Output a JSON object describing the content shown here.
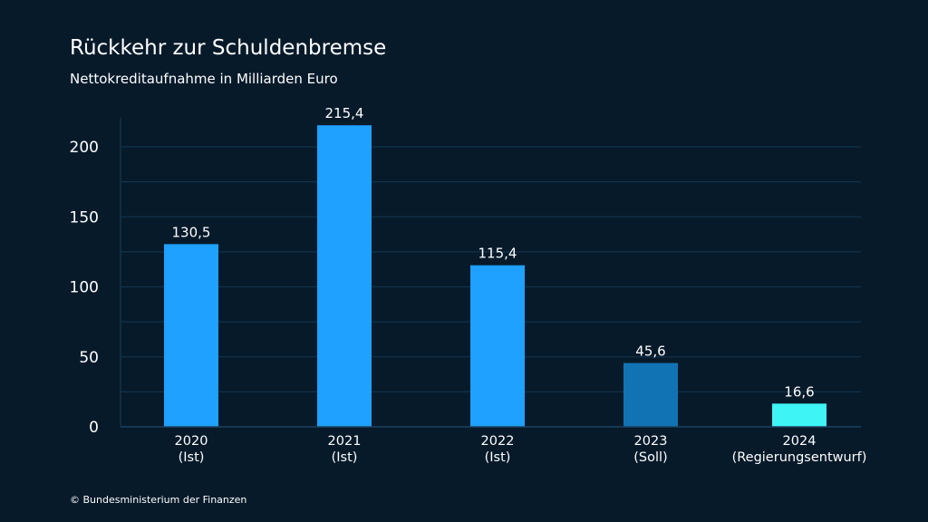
{
  "chart_data": {
    "type": "bar",
    "title": "Rückkehr zur Schuldenbremse",
    "subtitle": "Nettokreditaufnahme in Milliarden Euro",
    "categories": [
      [
        "2020",
        "(Ist)"
      ],
      [
        "2021",
        "(Ist)"
      ],
      [
        "2022",
        "(Ist)"
      ],
      [
        "2023",
        "(Soll)"
      ],
      [
        "2024",
        "(Regierungsentwurf)"
      ]
    ],
    "values": [
      130.5,
      215.4,
      115.4,
      45.6,
      16.6
    ],
    "value_labels": [
      "130,5",
      "215,4",
      "115,4",
      "45,6",
      "16,6"
    ],
    "bar_colors": [
      "#1ea1ff",
      "#1ea1ff",
      "#1ea1ff",
      "#1273b4",
      "#3ff4f4"
    ],
    "ylim": [
      0,
      220
    ],
    "yticks": [
      0,
      50,
      100,
      150,
      200
    ],
    "ytick_labels": [
      "0",
      "50",
      "100",
      "150",
      "200"
    ],
    "grid": true,
    "grid_color": "#12324a",
    "xlabel": "",
    "ylabel": ""
  },
  "footer": {
    "copyright": "© Bundesministerium der Finanzen"
  }
}
